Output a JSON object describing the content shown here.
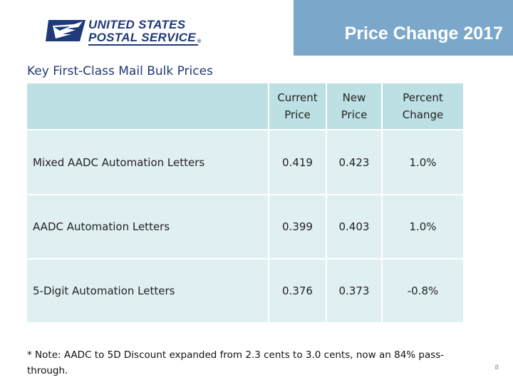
{
  "header": {
    "logo": {
      "line1": "UNITED STATES",
      "line2": "POSTAL SERVICE",
      "registered": "®",
      "icon": "eagle-icon"
    },
    "title": "Price Change 2017"
  },
  "section_title": "Key First-Class Mail Bulk Prices",
  "table": {
    "headers": [
      "",
      "Current Price",
      "New Price",
      "Percent Change"
    ],
    "header_lines": [
      [
        "",
        ""
      ],
      [
        "Current",
        "Price"
      ],
      [
        "New",
        "Price"
      ],
      [
        "Percent",
        "Change"
      ]
    ],
    "rows": [
      {
        "label": "Mixed AADC Automation Letters",
        "current": "0.419",
        "new": "0.423",
        "change": "1.0%"
      },
      {
        "label": "AADC Automation Letters",
        "current": "0.399",
        "new": "0.403",
        "change": "1.0%"
      },
      {
        "label": "5-Digit Automation Letters",
        "current": "0.376",
        "new": "0.373",
        "change": "-0.8%"
      }
    ]
  },
  "note": "* Note: AADC to 5D Discount expanded from 2.3 cents to 3.0 cents, now an 84% pass-through.",
  "page_number": "8",
  "colors": {
    "header_bar": "#7ba7cb",
    "brand_navy": "#1f3a78",
    "table_header": "#bde0e4",
    "table_body": "#e0f0f2"
  }
}
